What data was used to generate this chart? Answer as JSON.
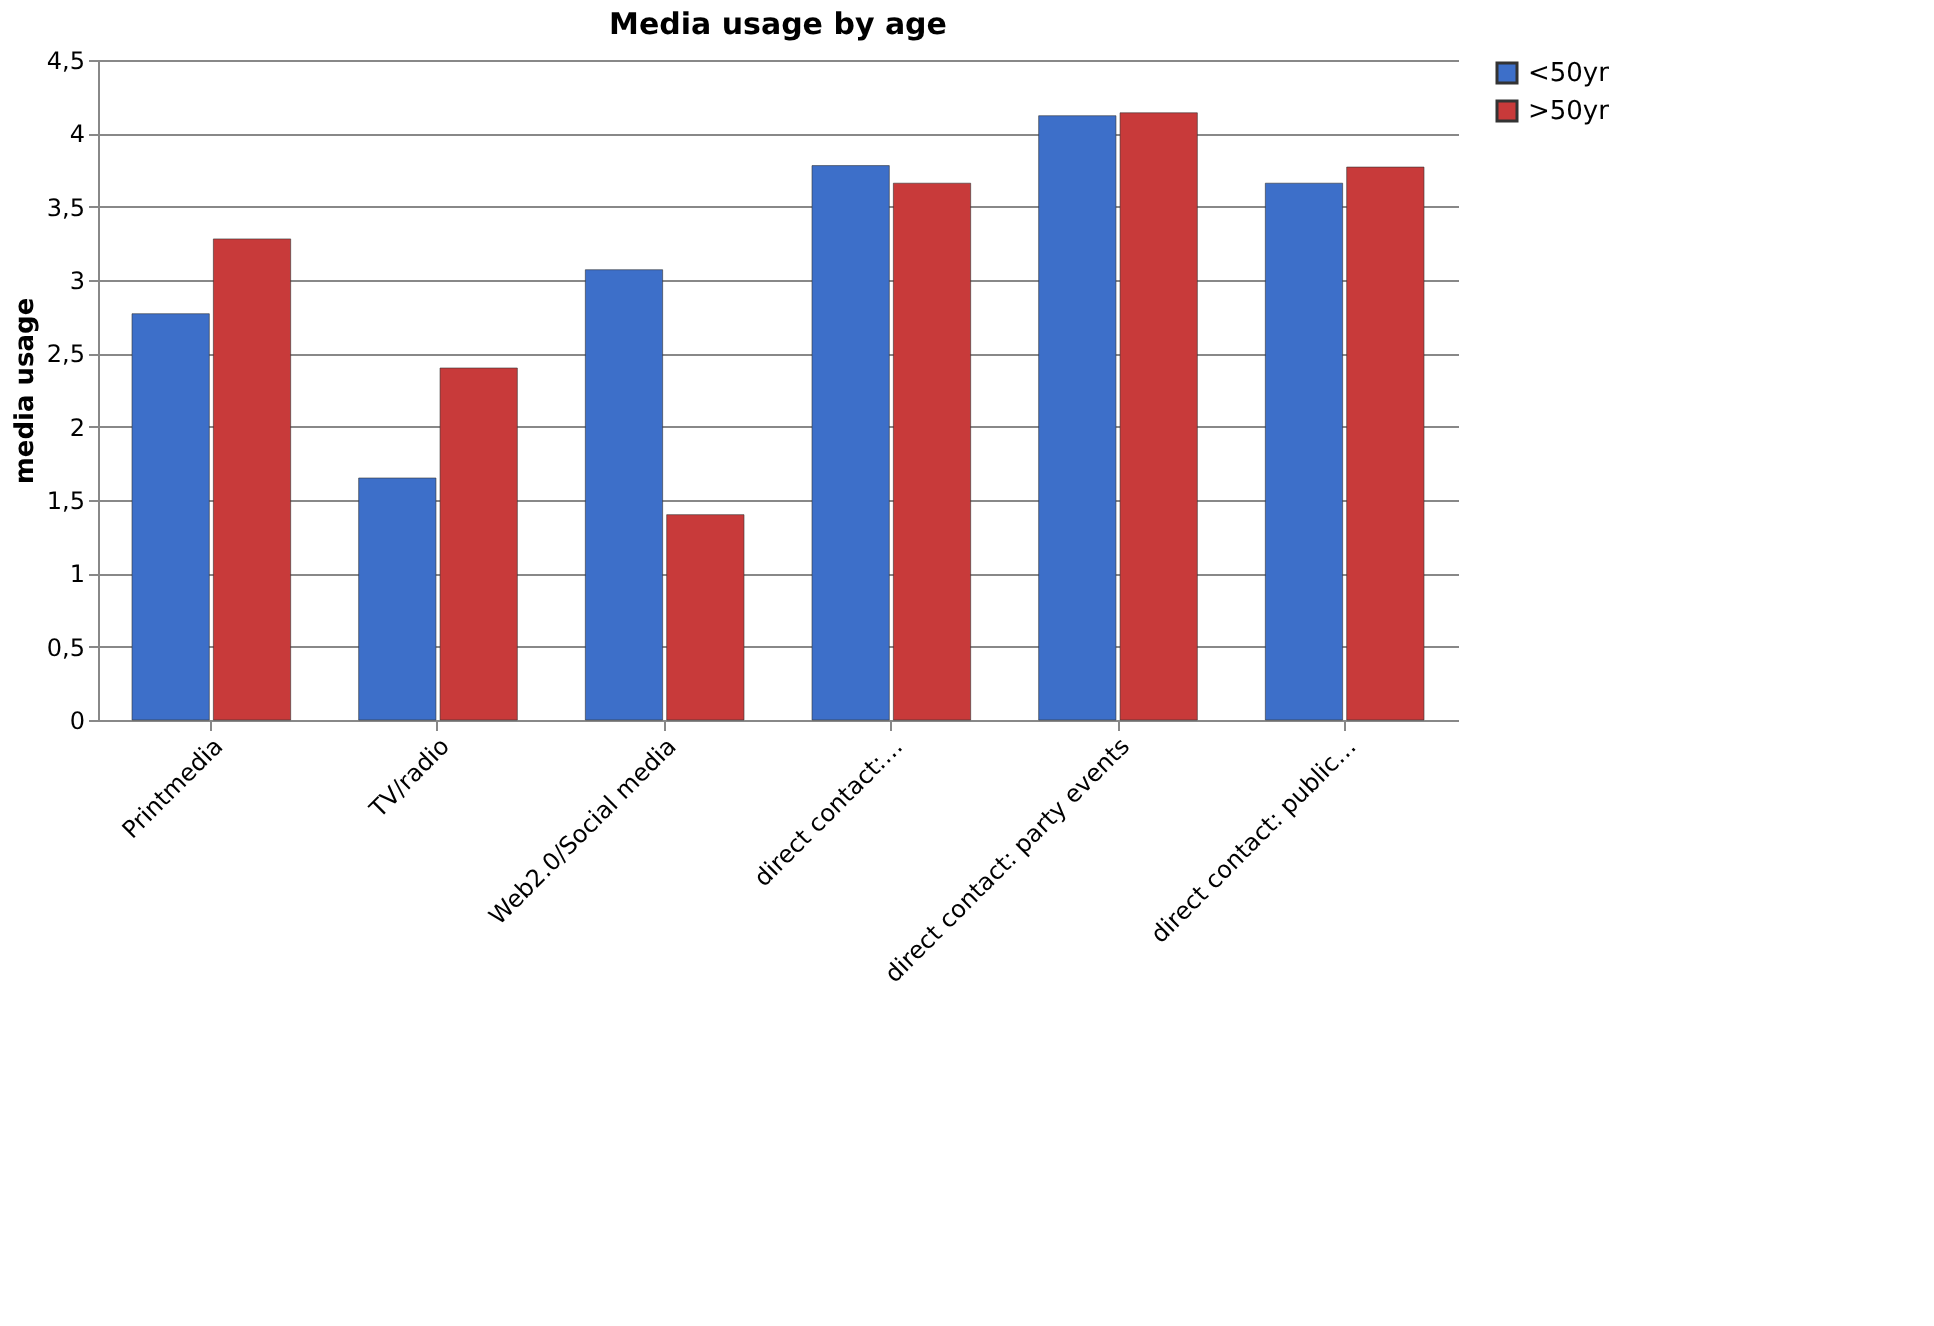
{
  "chart_data": {
    "type": "bar",
    "title": "Media usage by age",
    "ylabel": "media usage",
    "categories": [
      "Printmedia",
      "TV/radio",
      "Web2.0/Social media",
      "direct contact:…",
      "direct contact: party events",
      "direct contact: public…"
    ],
    "series": [
      {
        "name": "<50yr",
        "color": "#3d6fc9",
        "values": [
          2.77,
          1.65,
          3.07,
          3.78,
          4.12,
          3.66
        ]
      },
      {
        "name": ">50yr",
        "color": "#c83a3a",
        "values": [
          3.28,
          2.4,
          1.4,
          3.66,
          4.14,
          3.77
        ]
      }
    ],
    "ylim": [
      0,
      4.5
    ],
    "yticks": [
      0,
      {
        "value": 0.5,
        "label": "0,5"
      },
      1,
      {
        "value": 1.5,
        "label": "1,5"
      },
      2,
      {
        "value": 2.5,
        "label": "2,5"
      },
      3,
      {
        "value": 3.5,
        "label": "3,5"
      },
      4,
      {
        "value": 4.5,
        "label": "4,5"
      }
    ],
    "grid": "y",
    "legend": "right"
  }
}
